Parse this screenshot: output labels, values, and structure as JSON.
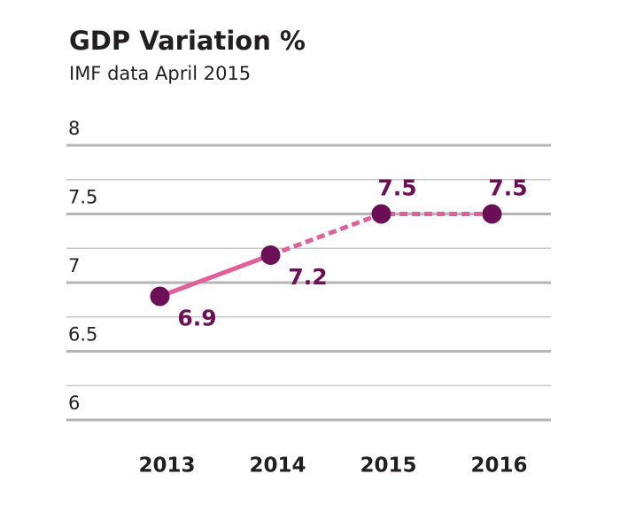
{
  "chart_data": {
    "type": "line",
    "title": "GDP Variation %",
    "subtitle": "IMF data April 2015",
    "categories": [
      "2013",
      "2014",
      "2015",
      "2016"
    ],
    "series": [
      {
        "values": [
          6.9,
          7.2,
          7.5,
          7.5
        ],
        "color": "#e0609a",
        "marker_color": "#6b0f57",
        "dashed_from": 1
      }
    ],
    "ylim": [
      6,
      8
    ],
    "yticks": [
      6,
      6.5,
      7,
      7.5,
      8
    ],
    "minor_yticks": [
      6.25,
      6.75,
      7.25,
      7.75
    ],
    "grid": true
  }
}
